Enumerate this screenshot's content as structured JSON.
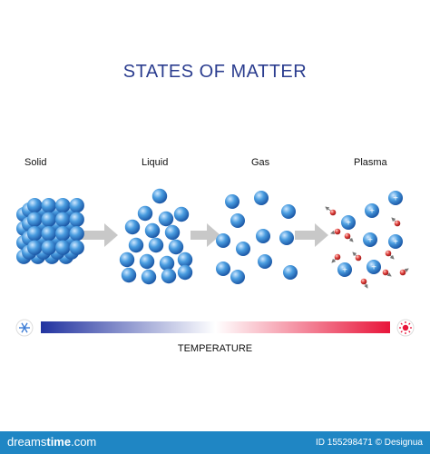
{
  "title": "STATES OF MATTER",
  "states": [
    "Solid",
    "Liquid",
    "Gas",
    "Plasma"
  ],
  "temperature_label": "TEMPERATURE",
  "colors": {
    "title": "#2b3d8f",
    "gradient_cold": "#2233a0",
    "gradient_mid": "#ffffff",
    "gradient_hot": "#e8153a",
    "particle": "#3d8fd6",
    "electron": "#e0433f",
    "footer": "#1f86c4"
  },
  "icons": {
    "cold": "snowflake-icon",
    "hot": "sun-icon"
  },
  "footer": {
    "site_a": "dreams",
    "site_b": "time",
    "site_c": ".com",
    "id_text": "ID 155298471 © Designua"
  }
}
